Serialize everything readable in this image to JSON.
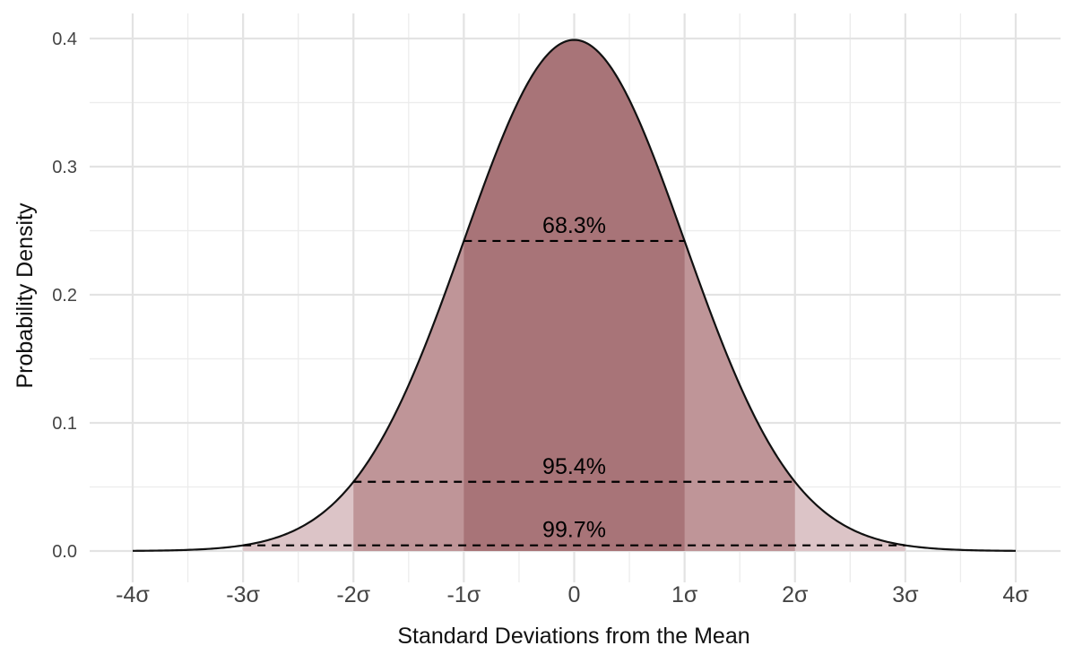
{
  "chart_data": {
    "type": "area",
    "title": "",
    "xlabel": "Standard Deviations from the Mean",
    "ylabel": "Probability Density",
    "xlim": [
      -4,
      4
    ],
    "ylim": [
      0,
      0.4
    ],
    "grid": true,
    "x_ticks": [
      -4,
      -3,
      -2,
      -1,
      0,
      1,
      2,
      3,
      4
    ],
    "x_tick_labels": [
      "-4σ",
      "-3σ",
      "-2σ",
      "-1σ",
      "0",
      "1σ",
      "2σ",
      "3σ",
      "4σ"
    ],
    "y_ticks": [
      0,
      0.1,
      0.2,
      0.3,
      0.4
    ],
    "y_tick_labels": [
      "0.0",
      "0.1",
      "0.2",
      "0.3",
      "0.4"
    ],
    "curve": {
      "distribution": "standard normal",
      "mean": 0,
      "sd": 1
    },
    "bands": [
      {
        "from": -3,
        "to": 3,
        "color": "#dcc4c7"
      },
      {
        "from": -2,
        "to": 2,
        "color": "#bf9598"
      },
      {
        "from": -1,
        "to": 1,
        "color": "#a87478"
      }
    ],
    "annotations": [
      {
        "label": "68.3%",
        "from": -1,
        "to": 1,
        "y": 0.242
      },
      {
        "label": "95.4%",
        "from": -2,
        "to": 2,
        "y": 0.054
      },
      {
        "label": "99.7%",
        "from": -3,
        "to": 3,
        "y": 0.0044
      }
    ]
  }
}
